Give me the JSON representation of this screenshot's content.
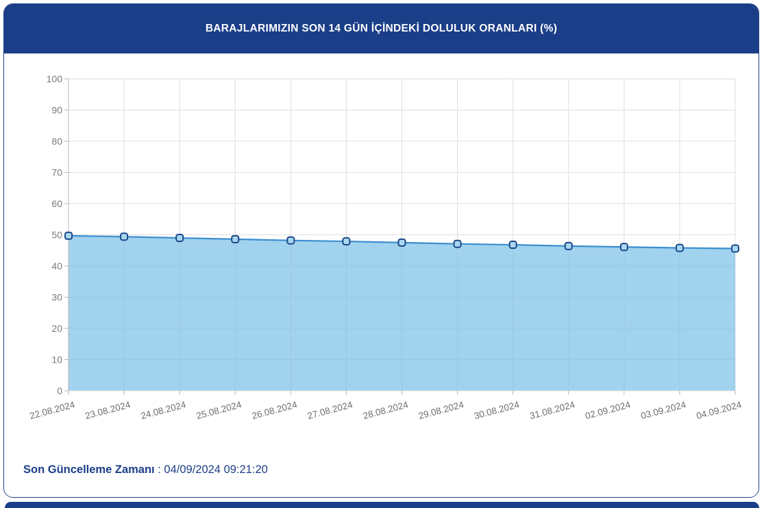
{
  "theme": {
    "navy": "#1b3e88",
    "header_text": "#ffffff"
  },
  "header": {
    "title": "BARAJLARIMIZIN SON 14 GÜN İÇİNDEKİ DOLULUK ORANLARI (%)"
  },
  "chart_data": {
    "type": "area",
    "title": "BARAJLARIMIZIN SON 14 GÜN İÇİNDEKİ DOLULUK ORANLARI (%)",
    "xlabel": "",
    "ylabel": "",
    "categories": [
      "22.08.2024",
      "23.08.2024",
      "24.08.2024",
      "25.08.2024",
      "26.08.2024",
      "27.08.2024",
      "28.08.2024",
      "29.08.2024",
      "30.08.2024",
      "31.08.2024",
      "02.09.2024",
      "03.09.2024",
      "04.09.2024"
    ],
    "values": [
      49.7,
      49.4,
      49.0,
      48.6,
      48.2,
      47.9,
      47.5,
      47.1,
      46.8,
      46.4,
      46.1,
      45.8,
      45.6
    ],
    "ylim": [
      0,
      100
    ],
    "ytick_step": 10,
    "grid": true,
    "legend": false,
    "marker_shape": "rounded-square",
    "colors": {
      "line": "#3b8ecf",
      "area": "#7dc1e8",
      "area_opacity": 0.72,
      "marker_fill": "#a9d7f2",
      "marker_stroke": "#1a4786",
      "gridline": "#dedede",
      "axis": "#b6b6b6",
      "tick_label": "#7a7a7a",
      "date_label": "#6e6e6e"
    }
  },
  "update": {
    "label_bold": "Son Güncelleme Zamanı",
    "separator": " : ",
    "timestamp": "04/09/2024 09:21:20"
  }
}
